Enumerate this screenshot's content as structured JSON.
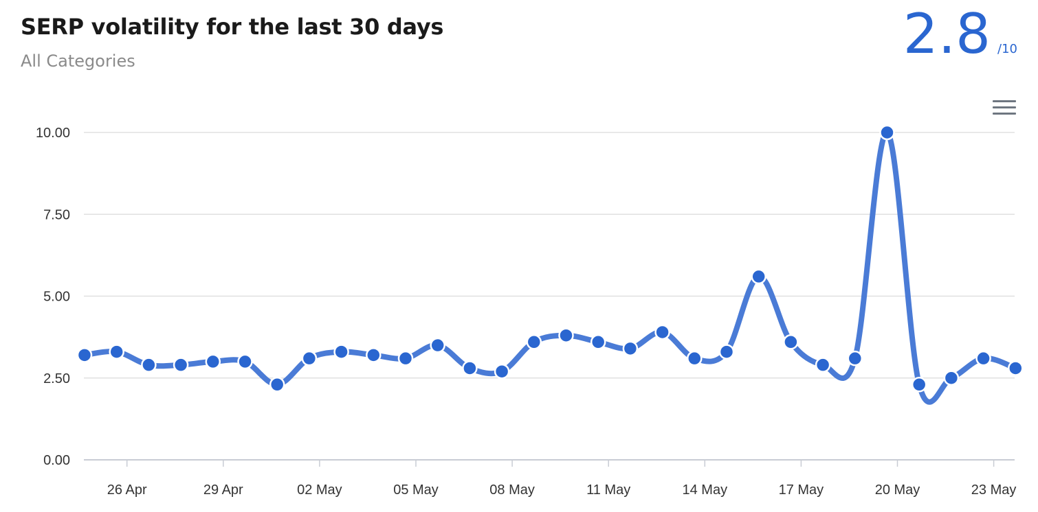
{
  "header": {
    "title": "SERP volatility for the last 30 days",
    "subtitle": "All Categories",
    "score": "2.8",
    "score_max": "/10"
  },
  "colors": {
    "accent": "#2a66d0",
    "line": "#4a7bd6",
    "point": "#2a66d0",
    "grid": "#e0e0e0"
  },
  "menu": {
    "icon": "hamburger-menu-icon"
  },
  "chart_data": {
    "type": "line",
    "title": "SERP volatility for the last 30 days",
    "xlabel": "",
    "ylabel": "",
    "ylim": [
      0,
      10
    ],
    "yticks": [
      "0.00",
      "2.50",
      "5.00",
      "7.50",
      "10.00"
    ],
    "ytick_values": [
      0,
      2.5,
      5,
      7.5,
      10
    ],
    "xtick_labels": [
      "26 Apr",
      "29 Apr",
      "02 May",
      "05 May",
      "08 May",
      "11 May",
      "14 May",
      "17 May",
      "20 May",
      "23 May"
    ],
    "grid": true,
    "dates": [
      "25 Apr",
      "26 Apr",
      "27 Apr",
      "28 Apr",
      "29 Apr",
      "30 Apr",
      "01 May",
      "02 May",
      "03 May",
      "04 May",
      "05 May",
      "06 May",
      "07 May",
      "08 May",
      "09 May",
      "10 May",
      "11 May",
      "12 May",
      "13 May",
      "14 May",
      "15 May",
      "16 May",
      "17 May",
      "18 May",
      "19 May",
      "20 May",
      "21 May",
      "22 May",
      "23 May",
      "24 May"
    ],
    "series": [
      {
        "values": [
          3.2,
          3.3,
          2.9,
          2.9,
          3.0,
          3.0,
          2.3,
          3.1,
          3.3,
          3.2,
          3.1,
          3.5,
          2.8,
          2.7,
          3.6,
          3.8,
          3.6,
          3.4,
          3.9,
          3.1,
          3.3,
          5.6,
          3.6,
          2.9,
          3.1,
          10.0,
          2.3,
          2.5,
          3.1,
          2.8
        ]
      }
    ]
  }
}
